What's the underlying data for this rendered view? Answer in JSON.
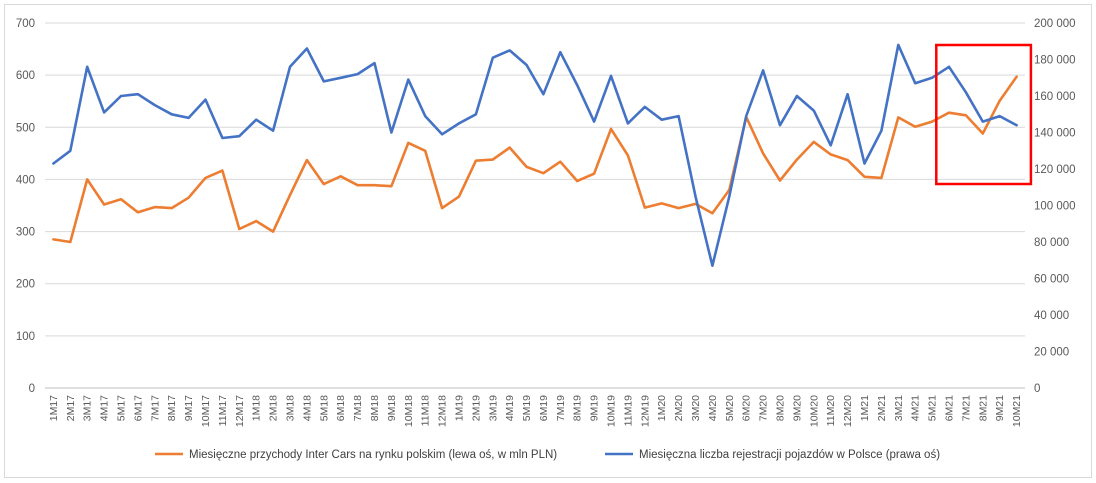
{
  "chart_data": {
    "type": "line",
    "title": "",
    "categories": [
      "1M17",
      "2M17",
      "3M17",
      "4M17",
      "5M17",
      "6M17",
      "7M17",
      "8M17",
      "9M17",
      "10M17",
      "11M17",
      "12M17",
      "1M18",
      "2M18",
      "3M18",
      "4M18",
      "5M18",
      "6M18",
      "7M18",
      "8M18",
      "9M18",
      "10M18",
      "11M18",
      "12M18",
      "1M19",
      "2M19",
      "3M19",
      "4M19",
      "5M19",
      "6M19",
      "7M19",
      "8M19",
      "9M19",
      "10M19",
      "11M19",
      "12M19",
      "1M20",
      "2M20",
      "3M20",
      "4M20",
      "5M20",
      "6M20",
      "7M20",
      "8M20",
      "9M20",
      "10M20",
      "11M20",
      "12M20",
      "1M21",
      "2M21",
      "3M21",
      "4M21",
      "5M21",
      "6M21",
      "7M21",
      "8M21",
      "9M21",
      "10M21"
    ],
    "left_axis": {
      "min": 0,
      "max": 700,
      "ticks": [
        "0",
        "100",
        "200",
        "300",
        "400",
        "500",
        "600",
        "700"
      ]
    },
    "right_axis": {
      "min": 0,
      "max": 200000,
      "ticks": [
        "0",
        "20 000",
        "40 000",
        "60 000",
        "80 000",
        "100 000",
        "120 000",
        "140 000",
        "160 000",
        "180 000",
        "200 000"
      ]
    },
    "grid": true,
    "legend_position": "bottom",
    "series": [
      {
        "name": "Miesięczne przychody Inter Cars na rynku polskim (lewa oś, w mln PLN)",
        "axis": "left",
        "color": "#ED7D31",
        "values": [
          285,
          280,
          400,
          352,
          362,
          337,
          347,
          345,
          365,
          403,
          417,
          305,
          320,
          300,
          370,
          437,
          391,
          406,
          389,
          389,
          387,
          470,
          455,
          345,
          367,
          436,
          438,
          461,
          424,
          412,
          434,
          397,
          411,
          497,
          446,
          346,
          354,
          345,
          353,
          335,
          380,
          520,
          450,
          398,
          438,
          472,
          448,
          437,
          405,
          403,
          519,
          501,
          511,
          528,
          523,
          488,
          551,
          597
        ]
      },
      {
        "name": "Miesięczna liczba rejestracji pojazdów w Polsce (prawa oś)",
        "axis": "right",
        "color": "#4472C4",
        "values": [
          123000,
          130000,
          176000,
          151000,
          160000,
          161000,
          155000,
          150000,
          148000,
          158000,
          137000,
          138000,
          147000,
          141000,
          176000,
          186000,
          168000,
          170000,
          172000,
          178000,
          140000,
          169000,
          149000,
          139000,
          145000,
          150000,
          181000,
          185000,
          177000,
          161000,
          184000,
          166000,
          146000,
          171000,
          145000,
          154000,
          147000,
          149000,
          105000,
          67000,
          105000,
          149000,
          174000,
          144000,
          160000,
          152000,
          133000,
          161000,
          123000,
          141000,
          188000,
          167000,
          170000,
          176000,
          162000,
          146000,
          149000,
          144000
        ]
      }
    ]
  },
  "highlight": {
    "color": "#FF0000",
    "from_category": "6M21",
    "to_category": "10M21"
  }
}
